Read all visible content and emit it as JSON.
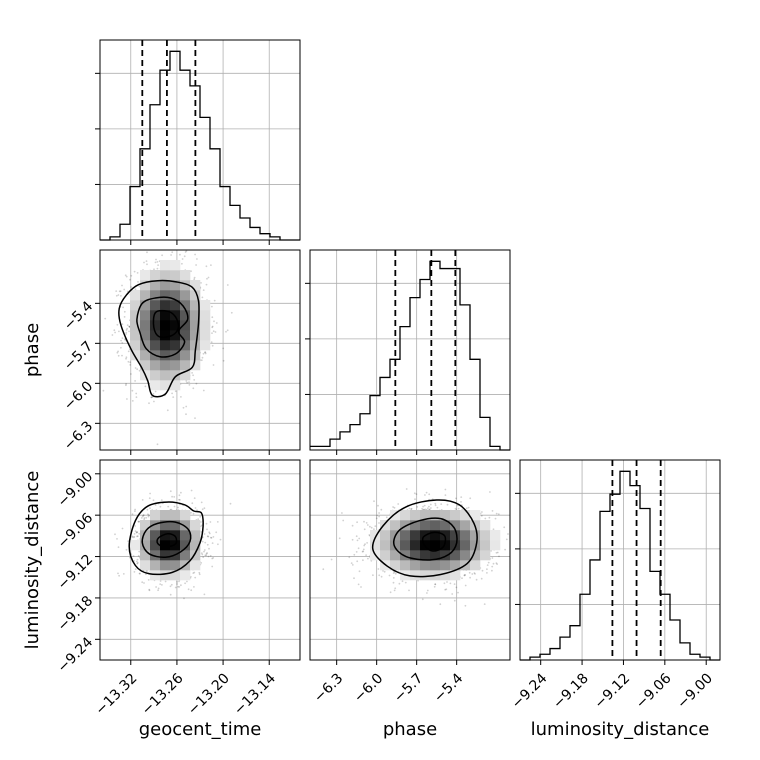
{
  "chart_data": {
    "type": "corner",
    "grid": true,
    "parameters": [
      {
        "name": "geocent_time",
        "label": "geocent_time",
        "range": [
          -13.36,
          -13.1
        ],
        "ticks": [
          -13.32,
          -13.26,
          -13.2,
          -13.14
        ],
        "tick_labels": [
          "−13.32",
          "−13.26",
          "−13.20",
          "−13.14"
        ],
        "quantiles": [
          -13.305,
          -13.273,
          -13.236
        ],
        "histogram": {
          "bin_edges": [
            -13.36,
            -13.347,
            -13.334,
            -13.321,
            -13.308,
            -13.295,
            -13.282,
            -13.269,
            -13.256,
            -13.243,
            -13.23,
            -13.217,
            -13.204,
            -13.191,
            -13.178,
            -13.165,
            -13.152,
            -13.139,
            -13.126,
            -13.113,
            -13.1
          ],
          "counts": [
            0,
            1,
            5,
            17,
            29,
            43,
            54,
            60,
            54,
            49,
            39,
            29,
            17,
            11,
            7,
            4,
            2,
            1,
            0,
            0
          ]
        }
      },
      {
        "name": "phase",
        "label": "phase",
        "range": [
          -6.5,
          -5.0
        ],
        "ticks": [
          -6.3,
          -6.0,
          -5.7,
          -5.4
        ],
        "tick_labels": [
          "−6.3",
          "−6.0",
          "−5.7",
          "−5.4"
        ],
        "quantiles": [
          -5.86,
          -5.59,
          -5.41
        ],
        "histogram": {
          "bin_edges": [
            -6.5,
            -6.425,
            -6.35,
            -6.275,
            -6.2,
            -6.125,
            -6.05,
            -5.975,
            -5.9,
            -5.825,
            -5.75,
            -5.675,
            -5.6,
            -5.525,
            -5.45,
            -5.375,
            -5.3,
            -5.225,
            -5.15,
            -5.075,
            -5.0
          ],
          "counts": [
            1,
            1,
            3,
            5,
            7,
            10,
            15,
            20,
            25,
            34,
            42,
            47,
            52,
            50,
            50,
            40,
            25,
            9,
            1,
            0
          ]
        }
      },
      {
        "name": "luminosity_distance",
        "label": "luminosity_distance",
        "range": [
          -9.27,
          -8.98
        ],
        "ticks": [
          -9.24,
          -9.18,
          -9.12,
          -9.06,
          -9.0
        ],
        "tick_labels": [
          "−9.24",
          "−9.18",
          "−9.12",
          "−9.06",
          "−9.00"
        ],
        "quantiles": [
          -9.136,
          -9.101,
          -9.066
        ],
        "histogram": {
          "bin_edges": [
            -9.27,
            -9.2555,
            -9.241,
            -9.2265,
            -9.212,
            -9.1975,
            -9.183,
            -9.1685,
            -9.154,
            -9.1395,
            -9.125,
            -9.1105,
            -9.096,
            -9.0815,
            -9.067,
            -9.0525,
            -9.038,
            -9.0235,
            -9.009,
            -8.9945,
            -8.98
          ],
          "counts": [
            0,
            1,
            2,
            4,
            8,
            12,
            23,
            35,
            52,
            58,
            66,
            61,
            53,
            31,
            23,
            14,
            6,
            2,
            1,
            0
          ]
        }
      }
    ],
    "pairs": [
      {
        "row": 1,
        "col": 0,
        "x": "geocent_time",
        "y": "phase",
        "mean": [
          -13.272,
          -5.57
        ],
        "std": [
          0.026,
          0.23
        ],
        "contours": [
          {
            "level": "inner",
            "points": [
              [
                -13.288,
                -5.47
              ],
              [
                -13.272,
                -5.46
              ],
              [
                -13.262,
                -5.5
              ],
              [
                -13.258,
                -5.58
              ],
              [
                -13.266,
                -5.64
              ],
              [
                -13.283,
                -5.65
              ],
              [
                -13.29,
                -5.58
              ]
            ]
          },
          {
            "level": "middle",
            "points": [
              [
                -13.305,
                -5.4
              ],
              [
                -13.288,
                -5.36
              ],
              [
                -13.268,
                -5.36
              ],
              [
                -13.252,
                -5.42
              ],
              [
                -13.246,
                -5.52
              ],
              [
                -13.258,
                -5.61
              ],
              [
                -13.25,
                -5.69
              ],
              [
                -13.262,
                -5.78
              ],
              [
                -13.282,
                -5.8
              ],
              [
                -13.3,
                -5.74
              ],
              [
                -13.308,
                -5.62
              ],
              [
                -13.312,
                -5.52
              ]
            ]
          },
          {
            "level": "outer",
            "points": [
              [
                -13.326,
                -5.34
              ],
              [
                -13.31,
                -5.26
              ],
              [
                -13.285,
                -5.23
              ],
              [
                -13.26,
                -5.24
              ],
              [
                -13.24,
                -5.28
              ],
              [
                -13.232,
                -5.38
              ],
              [
                -13.232,
                -5.55
              ],
              [
                -13.236,
                -5.75
              ],
              [
                -13.24,
                -5.88
              ],
              [
                -13.262,
                -5.95
              ],
              [
                -13.275,
                -6.08
              ],
              [
                -13.292,
                -6.09
              ],
              [
                -13.298,
                -5.98
              ],
              [
                -13.306,
                -5.88
              ],
              [
                -13.32,
                -5.74
              ],
              [
                -13.333,
                -5.56
              ],
              [
                -13.335,
                -5.44
              ]
            ]
          }
        ]
      },
      {
        "row": 2,
        "col": 0,
        "x": "geocent_time",
        "y": "luminosity_distance",
        "mean": [
          -13.27,
          -9.1
        ],
        "std": [
          0.022,
          0.026
        ],
        "contours": [
          {
            "level": "inner",
            "points": [
              [
                -13.284,
                -9.093
              ],
              [
                -13.272,
                -9.087
              ],
              [
                -13.262,
                -9.091
              ],
              [
                -13.262,
                -9.102
              ],
              [
                -13.276,
                -9.106
              ],
              [
                -13.285,
                -9.101
              ]
            ]
          },
          {
            "level": "middle",
            "points": [
              [
                -13.3,
                -9.082
              ],
              [
                -13.285,
                -9.072
              ],
              [
                -13.262,
                -9.07
              ],
              [
                -13.245,
                -9.081
              ],
              [
                -13.243,
                -9.098
              ],
              [
                -13.255,
                -9.113
              ],
              [
                -13.275,
                -9.121
              ],
              [
                -13.296,
                -9.116
              ],
              [
                -13.305,
                -9.1
              ]
            ]
          },
          {
            "level": "outer",
            "points": [
              [
                -13.314,
                -9.068
              ],
              [
                -13.298,
                -9.047
              ],
              [
                -13.273,
                -9.041
              ],
              [
                -13.25,
                -9.045
              ],
              [
                -13.238,
                -9.054
              ],
              [
                -13.228,
                -9.057
              ],
              [
                -13.226,
                -9.076
              ],
              [
                -13.23,
                -9.1
              ],
              [
                -13.243,
                -9.126
              ],
              [
                -13.266,
                -9.143
              ],
              [
                -13.296,
                -9.145
              ],
              [
                -13.314,
                -9.133
              ],
              [
                -13.322,
                -9.105
              ]
            ]
          }
        ]
      },
      {
        "row": 2,
        "col": 1,
        "x": "phase",
        "y": "luminosity_distance",
        "mean": [
          -5.57,
          -9.1
        ],
        "std": [
          0.23,
          0.026
        ],
        "contours": [
          {
            "level": "inner",
            "points": [
              [
                -5.65,
                -9.092
              ],
              [
                -5.57,
                -9.085
              ],
              [
                -5.49,
                -9.09
              ],
              [
                -5.5,
                -9.106
              ],
              [
                -5.58,
                -9.112
              ],
              [
                -5.64,
                -9.104
              ]
            ]
          },
          {
            "level": "middle",
            "points": [
              [
                -5.83,
                -9.082
              ],
              [
                -5.68,
                -9.068
              ],
              [
                -5.52,
                -9.065
              ],
              [
                -5.42,
                -9.078
              ],
              [
                -5.4,
                -9.1
              ],
              [
                -5.46,
                -9.117
              ],
              [
                -5.6,
                -9.125
              ],
              [
                -5.78,
                -9.12
              ],
              [
                -5.87,
                -9.103
              ]
            ]
          },
          {
            "level": "outer",
            "points": [
              [
                -5.95,
                -9.075
              ],
              [
                -5.78,
                -9.048
              ],
              [
                -5.55,
                -9.038
              ],
              [
                -5.38,
                -9.045
              ],
              [
                -5.27,
                -9.072
              ],
              [
                -5.25,
                -9.1
              ],
              [
                -5.32,
                -9.13
              ],
              [
                -5.52,
                -9.146
              ],
              [
                -5.75,
                -9.148
              ],
              [
                -5.92,
                -9.134
              ],
              [
                -6.03,
                -9.108
              ]
            ]
          }
        ]
      }
    ]
  }
}
